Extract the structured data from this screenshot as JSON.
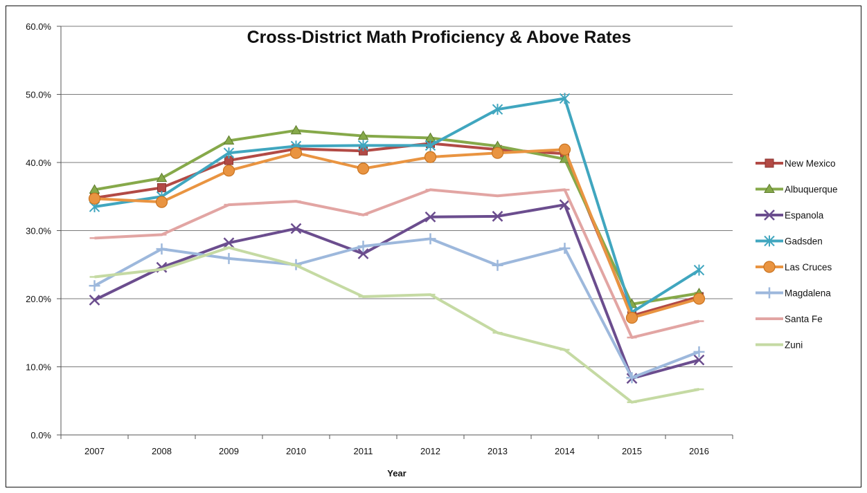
{
  "chart_data": {
    "type": "line",
    "title": "Cross-District Math Proficiency & Above Rates",
    "xlabel": "Year",
    "ylabel": "",
    "ylim": [
      0,
      60
    ],
    "ytick_labels": [
      "0.0%",
      "10.0%",
      "20.0%",
      "30.0%",
      "40.0%",
      "50.0%",
      "60.0%"
    ],
    "grid": "horizontal",
    "legend_position": "right",
    "categories": [
      "2007",
      "2008",
      "2009",
      "2010",
      "2011",
      "2012",
      "2013",
      "2014",
      "2015",
      "2016"
    ],
    "series": [
      {
        "name": "New Mexico",
        "color": "#b24a45",
        "marker": "square",
        "values": [
          34.8,
          36.3,
          40.3,
          42.0,
          41.7,
          42.8,
          41.9,
          41.3,
          17.5,
          20.3
        ]
      },
      {
        "name": "Albuquerque",
        "color": "#86a94a",
        "marker": "triangle",
        "values": [
          36.0,
          37.7,
          43.2,
          44.7,
          43.9,
          43.6,
          42.4,
          40.5,
          19.2,
          20.8
        ]
      },
      {
        "name": "Espanola",
        "color": "#6b4d8e",
        "marker": "x",
        "values": [
          19.8,
          24.6,
          28.2,
          30.3,
          26.6,
          32.0,
          32.1,
          33.8,
          8.3,
          11.0
        ]
      },
      {
        "name": "Gadsden",
        "color": "#40a6bf",
        "marker": "star",
        "values": [
          33.5,
          35.0,
          41.4,
          42.4,
          42.5,
          42.5,
          47.8,
          49.4,
          18.0,
          24.2
        ]
      },
      {
        "name": "Las Cruces",
        "color": "#e99441",
        "marker": "circle",
        "values": [
          34.7,
          34.2,
          38.8,
          41.4,
          39.1,
          40.8,
          41.4,
          41.9,
          17.2,
          20.0
        ]
      },
      {
        "name": "Magdalena",
        "color": "#9db8dc",
        "marker": "plus",
        "values": [
          21.9,
          27.3,
          25.9,
          25.0,
          27.7,
          28.8,
          24.9,
          27.4,
          8.4,
          12.2
        ]
      },
      {
        "name": "Santa Fe",
        "color": "#e2a5a3",
        "marker": "dash",
        "values": [
          28.9,
          29.4,
          33.8,
          34.3,
          32.3,
          36.0,
          35.1,
          36.0,
          14.3,
          16.7
        ]
      },
      {
        "name": "Zuni",
        "color": "#c5daa3",
        "marker": "dash",
        "values": [
          23.2,
          24.3,
          27.5,
          24.9,
          20.3,
          20.6,
          15.0,
          12.5,
          4.8,
          6.7
        ]
      }
    ]
  }
}
